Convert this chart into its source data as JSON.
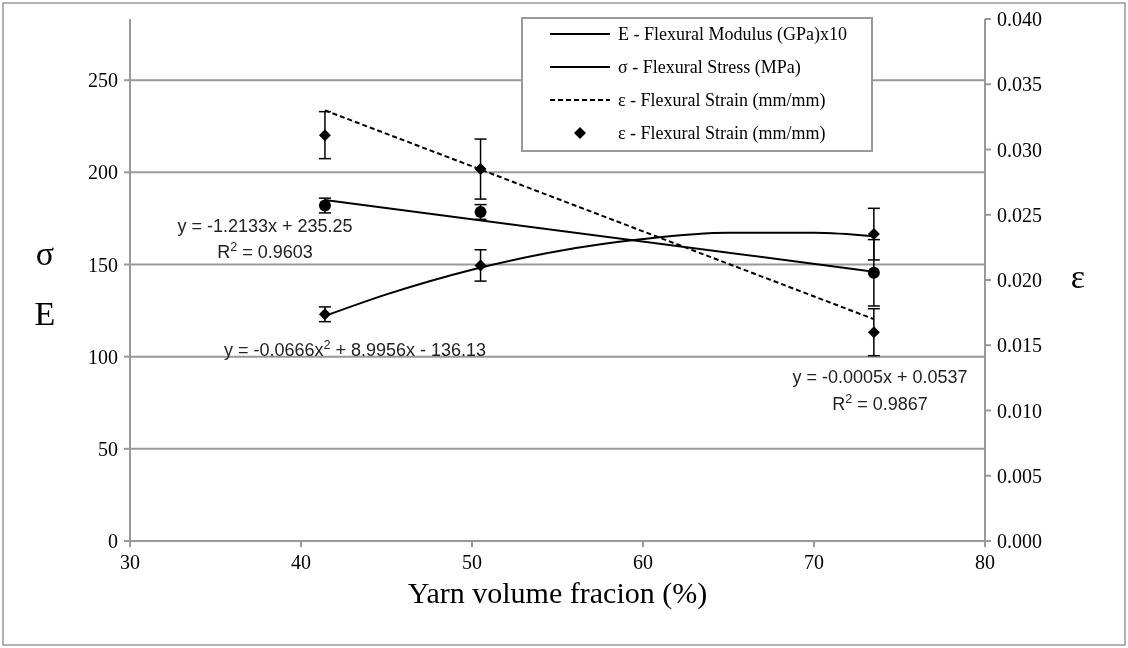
{
  "chart_data": {
    "type": "scatter",
    "xlabel": "Yarn volume fracion (%)",
    "ylabel": "σ E",
    "y2label": "ε",
    "xlim": [
      30,
      80
    ],
    "xticks": [
      30,
      40,
      50,
      60,
      70,
      80
    ],
    "ylim": [
      0,
      283.2
    ],
    "yticks": [
      0,
      50,
      100,
      150,
      200,
      250
    ],
    "y2lim": [
      0,
      0.04
    ],
    "y2ticks": [
      {
        "value": 0,
        "label": "0.000"
      },
      {
        "value": 0.005,
        "label": "0.005"
      },
      {
        "value": 0.01,
        "label": "0.010"
      },
      {
        "value": 0.015,
        "label": "0.015"
      },
      {
        "value": 0.02,
        "label": "0.020"
      },
      {
        "value": 0.025,
        "label": "0.025"
      },
      {
        "value": 0.03,
        "label": "0.030"
      },
      {
        "value": 0.035,
        "label": "0.035"
      },
      {
        "value": 0.04,
        "label": "0.040"
      }
    ],
    "grid": "y",
    "legend": "top right",
    "series": [
      {
        "name": "E - Flexural Modulus (GPa)x10",
        "type": "line",
        "color": "#000000",
        "line_style": "solid",
        "marker": "none",
        "x": [
          41.4,
          45,
          50,
          55,
          60,
          65,
          70,
          73.5
        ],
        "values": [
          122.1,
          133.8,
          147.2,
          157.2,
          163.8,
          167.2,
          167.2,
          165.3
        ]
      },
      {
        "name": "σ - Flexural Stress (MPa)",
        "type": "line",
        "color": "#000000",
        "line_style": "solid",
        "marker": "none",
        "x": [
          41.4,
          73.5
        ],
        "values": [
          185.0,
          146.1
        ]
      },
      {
        "name": "ε - Flexural Strain (mm/mm)",
        "type": "line",
        "axis": "y2",
        "color": "#000000",
        "line_style": "dashed",
        "marker": "none",
        "x": [
          41.4,
          73.5
        ],
        "values": [
          0.033,
          0.017
        ]
      },
      {
        "name": "ε - Flexural Strain (mm/mm)",
        "axis": "y2",
        "color": "#000000",
        "marker": "diamond",
        "x": [
          41.4,
          50.5,
          73.5
        ],
        "values": [
          0.0311,
          0.0285,
          0.016
        ],
        "errors": [
          0.0018,
          0.0023,
          0.0018
        ]
      },
      {
        "color": "#000000",
        "marker": "diamond",
        "x": [
          41.4,
          50.5,
          73.5
        ],
        "values": [
          123,
          149.5,
          166.5
        ],
        "errors": [
          4,
          8.5,
          14
        ]
      },
      {
        "color": "#000000",
        "marker": "circle",
        "x": [
          41.4,
          50.5,
          73.5
        ],
        "values": [
          182,
          178.5,
          145.5
        ],
        "errors": [
          4,
          4,
          18
        ]
      }
    ],
    "annotations": [
      "y = -1.2133x + 235.25",
      "R$^{2}$ = 0.9603",
      "y = -0.0666x$^{2}$ + 8.9956x - 136.13",
      "y = -0.0005x + 0.0537",
      "R$^{2}$ = 0.9867"
    ]
  }
}
